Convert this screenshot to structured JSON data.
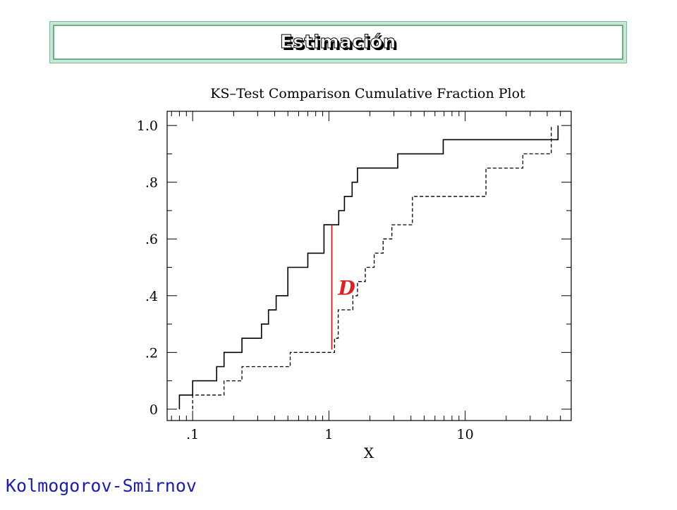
{
  "slide": {
    "title": "Estimación",
    "footer": "Kolmogorov-Smirnov"
  },
  "chart_data": {
    "type": "line",
    "title": "KS–Test Comparison Cumulative Fraction Plot",
    "xlabel": "X",
    "ylabel": "",
    "x_scale": "log",
    "xlim": [
      0.065,
      60
    ],
    "ylim": [
      -0.04,
      1.05
    ],
    "x_ticks": [
      {
        "value": 0.1,
        "label": ".1"
      },
      {
        "value": 1,
        "label": "1"
      },
      {
        "value": 10,
        "label": "10"
      }
    ],
    "y_ticks": [
      {
        "value": 0,
        "label": "0"
      },
      {
        "value": 0.2,
        "label": ".2"
      },
      {
        "value": 0.4,
        "label": ".4"
      },
      {
        "value": 0.6,
        "label": ".6"
      },
      {
        "value": 0.8,
        "label": ".8"
      },
      {
        "value": 1.0,
        "label": "1.0"
      }
    ],
    "series": [
      {
        "style": "solid",
        "x": [
          0.08,
          0.1,
          0.15,
          0.17,
          0.23,
          0.32,
          0.36,
          0.41,
          0.5,
          0.7,
          0.92,
          1.18,
          1.3,
          1.48,
          1.62,
          1.78,
          3.2,
          6.9,
          48
        ],
        "y": [
          0.05,
          0.1,
          0.15,
          0.2,
          0.25,
          0.3,
          0.35,
          0.4,
          0.5,
          0.55,
          0.65,
          0.7,
          0.75,
          0.8,
          0.85,
          0.85,
          0.9,
          0.95,
          1.0
        ]
      },
      {
        "style": "dashed",
        "x": [
          0.1,
          0.17,
          0.19,
          0.23,
          0.52,
          1.1,
          1.17,
          1.24,
          1.5,
          1.62,
          1.85,
          2.15,
          2.35,
          2.5,
          2.9,
          4.1,
          4.5,
          14.2,
          26.5,
          42.8
        ],
        "y": [
          0.05,
          0.1,
          0.1,
          0.15,
          0.2,
          0.25,
          0.35,
          0.35,
          0.4,
          0.45,
          0.5,
          0.55,
          0.55,
          0.6,
          0.65,
          0.75,
          0.75,
          0.85,
          0.9,
          1.0
        ]
      }
    ],
    "annotations": [
      {
        "label": "D",
        "x": 1.05,
        "y_low": 0.21,
        "y_high": 0.65,
        "color": "#e02020"
      }
    ],
    "colors": {
      "axes": "#000000",
      "series": "#000000",
      "annotation": "#e02020",
      "footer": "#1d1db3"
    }
  }
}
